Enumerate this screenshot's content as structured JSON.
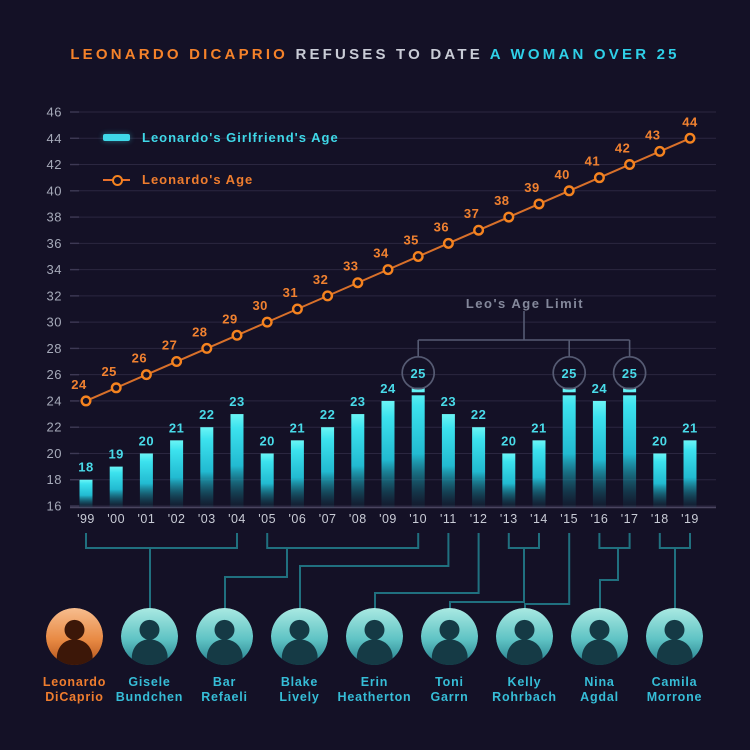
{
  "title": {
    "part1": "LEONARDO DICAPRIO",
    "part2": "REFUSES TO DATE",
    "part3": "A WOMAN OVER 25"
  },
  "legend": [
    {
      "label": "Leonardo's Girlfriend's Age",
      "type": "bar",
      "color": "#3fd8e8"
    },
    {
      "label": "Leonardo's Age",
      "type": "line",
      "color": "#ef7d2e"
    }
  ],
  "annotation": {
    "label": "Leo's Age Limit"
  },
  "colors": {
    "background": "#141126",
    "orange": "#f5822a",
    "cyan": "#3fd8e8",
    "connector": "#20707f",
    "annotation_gray": "#84889b"
  },
  "chart_data": {
    "type": "bar",
    "categories": [
      "'99",
      "'00",
      "'01",
      "'02",
      "'03",
      "'04",
      "'05",
      "'06",
      "'07",
      "'08",
      "'09",
      "'10",
      "'11",
      "'12",
      "'13",
      "'14",
      "'15",
      "'16",
      "'17",
      "'18",
      "'19"
    ],
    "series": [
      {
        "name": "Leonardo's Girlfriend's Age",
        "type": "bar",
        "values": [
          18,
          19,
          20,
          21,
          22,
          23,
          20,
          21,
          22,
          23,
          24,
          25,
          23,
          22,
          20,
          21,
          25,
          24,
          25,
          20,
          21
        ]
      },
      {
        "name": "Leonardo's Age",
        "type": "line",
        "values": [
          24,
          25,
          26,
          27,
          28,
          29,
          30,
          31,
          32,
          33,
          34,
          35,
          36,
          37,
          38,
          39,
          40,
          41,
          42,
          43,
          44
        ]
      }
    ],
    "ylim": [
      16,
      46
    ],
    "ytick_step": 2,
    "grid": true,
    "legend_position": "top-left",
    "annotations": {
      "label": "Leo's Age Limit",
      "circled_categories": [
        "'10",
        "'15",
        "'17"
      ]
    }
  },
  "people": [
    {
      "first": "Leonardo",
      "last": "DiCaprio",
      "role": "self"
    },
    {
      "first": "Gisele",
      "last": "Bundchen",
      "years": [
        "'99",
        "'04"
      ]
    },
    {
      "first": "Bar",
      "last": "Refaeli",
      "years": [
        "'05",
        "'10"
      ]
    },
    {
      "first": "Blake",
      "last": "Lively",
      "years": [
        "'11",
        "'11"
      ]
    },
    {
      "first": "Erin",
      "last": "Heatherton",
      "years": [
        "'12",
        "'12"
      ]
    },
    {
      "first": "Toni",
      "last": "Garrn",
      "years": [
        "'13",
        "'14"
      ]
    },
    {
      "first": "Kelly",
      "last": "Rohrbach",
      "years": [
        "'15",
        "'15"
      ]
    },
    {
      "first": "Nina",
      "last": "Agdal",
      "years": [
        "'16",
        "'17"
      ]
    },
    {
      "first": "Camila",
      "last": "Morrone",
      "years": [
        "'18",
        "'19"
      ]
    }
  ]
}
